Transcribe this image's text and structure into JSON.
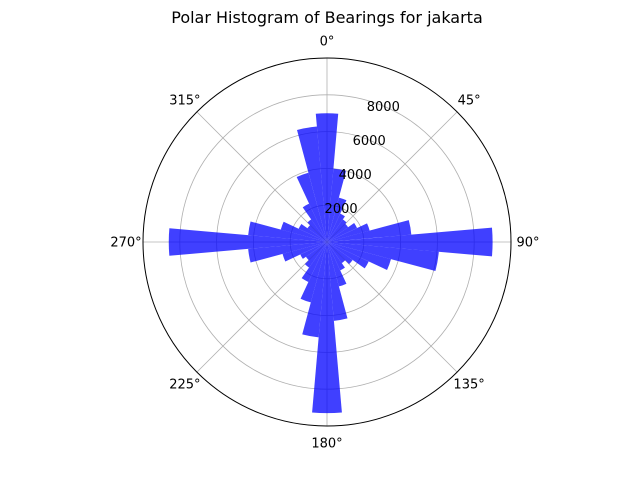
{
  "chart_data": {
    "type": "bar",
    "subtype": "polar-histogram",
    "title": "Polar Histogram of Bearings for jakarta",
    "theta_direction": "clockwise",
    "theta_zero": "top",
    "bin_width_deg": 10,
    "radial_max": 10000,
    "radial_ticks": [
      2000,
      4000,
      6000,
      8000
    ],
    "radial_tick_labels": [
      "2000",
      "4000",
      "6000",
      "8000"
    ],
    "angle_ticks": [
      0,
      45,
      90,
      135,
      180,
      225,
      270,
      315
    ],
    "angle_tick_labels": [
      "0°",
      "45°",
      "90°",
      "135°",
      "180°",
      "225°",
      "270°",
      "315°"
    ],
    "grid": true,
    "bar_color": "#0000ff",
    "bar_opacity": 0.75,
    "bin_centers_deg": [
      0,
      10,
      20,
      30,
      40,
      50,
      60,
      70,
      80,
      90,
      100,
      110,
      120,
      130,
      140,
      150,
      160,
      170,
      180,
      190,
      200,
      210,
      220,
      230,
      240,
      250,
      260,
      270,
      280,
      290,
      300,
      310,
      320,
      330,
      340,
      350
    ],
    "values": [
      7000,
      4000,
      2500,
      1700,
      1500,
      1400,
      1800,
      2400,
      4600,
      9000,
      6100,
      3600,
      2500,
      1700,
      1400,
      1700,
      2500,
      4300,
      9300,
      5200,
      3400,
      2400,
      1700,
      1400,
      1600,
      2500,
      4300,
      8600,
      4300,
      2600,
      1700,
      1300,
      1500,
      2300,
      3900,
      6300
    ]
  }
}
